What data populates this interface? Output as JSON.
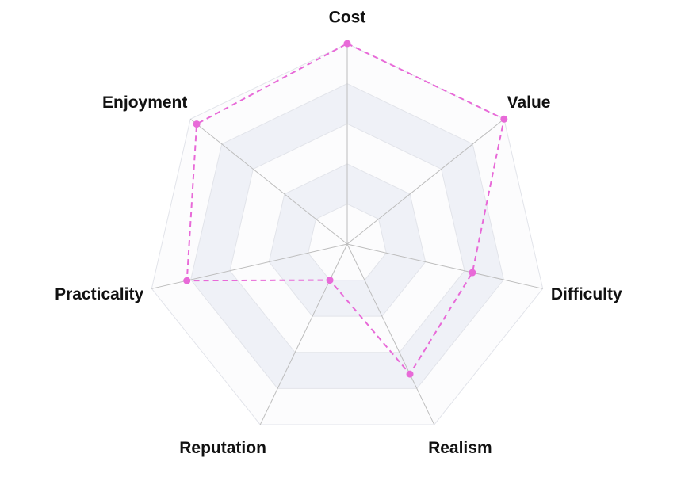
{
  "chart_data": {
    "type": "radar",
    "axes": [
      "Cost",
      "Value",
      "Difficulty",
      "Realism",
      "Reputation",
      "Practicality",
      "Enjoyment"
    ],
    "series": [
      {
        "values": [
          5.0,
          5.0,
          3.2,
          3.6,
          1.0,
          4.1,
          4.8
        ]
      }
    ],
    "rlim": [
      0,
      5
    ],
    "rings": 5,
    "colors": {
      "series_line": "#e86ad8",
      "series_point": "#e86ad8",
      "band_shade": "#eff1f7",
      "band_light": "#fcfcfd",
      "ring_line": "#e2e4ea",
      "spoke_line": "#bdbdbd"
    },
    "grid": true,
    "line_style": "dashed"
  }
}
